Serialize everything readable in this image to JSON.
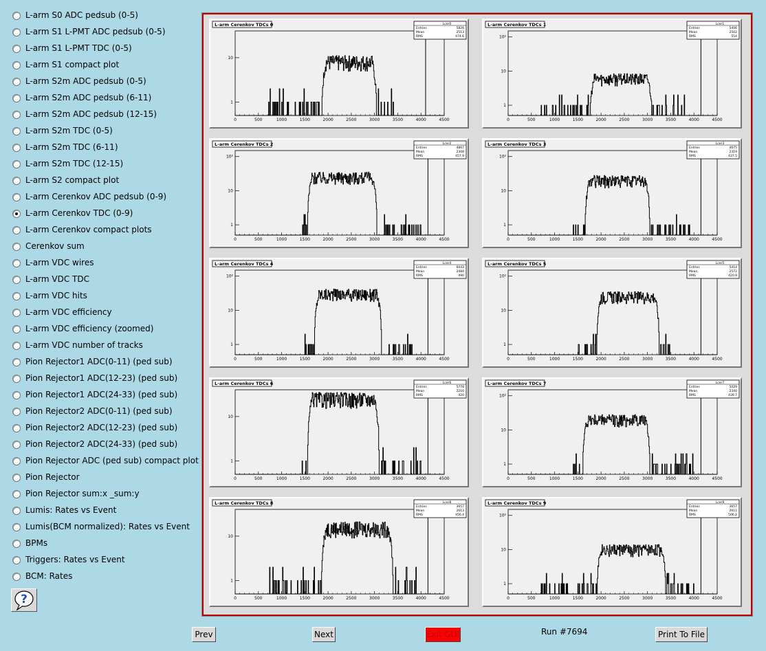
{
  "menu": {
    "items": [
      {
        "label": "L-arm S0 ADC pedsub (0-5)",
        "selected": false
      },
      {
        "label": "L-arm S1 L-PMT ADC pedsub (0-5)",
        "selected": false
      },
      {
        "label": "L-arm S1 L-PMT TDC (0-5)",
        "selected": false
      },
      {
        "label": "L-arm S1 compact plot",
        "selected": false
      },
      {
        "label": "L-arm S2m ADC pedsub (0-5)",
        "selected": false
      },
      {
        "label": "L-arm S2m ADC pedsub (6-11)",
        "selected": false
      },
      {
        "label": "L-arm S2m ADC pedsub (12-15)",
        "selected": false
      },
      {
        "label": "L-arm S2m TDC (0-5)",
        "selected": false
      },
      {
        "label": "L-arm S2m TDC (6-11)",
        "selected": false
      },
      {
        "label": "L-arm S2m TDC (12-15)",
        "selected": false
      },
      {
        "label": "L-arm S2 compact plot",
        "selected": false
      },
      {
        "label": "L-arm Cerenkov ADC pedsub (0-9)",
        "selected": false
      },
      {
        "label": "L-arm Cerenkov TDC (0-9)",
        "selected": true
      },
      {
        "label": "L-arm Cerenkov compact plots",
        "selected": false
      },
      {
        "label": "Cerenkov sum",
        "selected": false
      },
      {
        "label": "L-arm VDC wires",
        "selected": false
      },
      {
        "label": "L-arm VDC TDC",
        "selected": false
      },
      {
        "label": "L-arm VDC hits",
        "selected": false
      },
      {
        "label": "L-arm VDC efficiency",
        "selected": false
      },
      {
        "label": "L-arm VDC efficiency (zoomed)",
        "selected": false
      },
      {
        "label": "L-arm VDC number of tracks",
        "selected": false
      },
      {
        "label": "Pion Rejector1 ADC(0-11) (ped sub)",
        "selected": false
      },
      {
        "label": "Pion Rejector1 ADC(12-23) (ped sub)",
        "selected": false
      },
      {
        "label": "Pion Rejector1 ADC(24-33) (ped sub)",
        "selected": false
      },
      {
        "label": "Pion Rejector2 ADC(0-11) (ped sub)",
        "selected": false
      },
      {
        "label": "Pion Rejector2 ADC(12-23) (ped sub)",
        "selected": false
      },
      {
        "label": "Pion Rejector2 ADC(24-33) (ped sub)",
        "selected": false
      },
      {
        "label": "Pion Rejector ADC (ped sub) compact plot",
        "selected": false
      },
      {
        "label": "Pion Rejector",
        "selected": false
      },
      {
        "label": "Pion Rejector sum:x _sum:y",
        "selected": false
      },
      {
        "label": "Lumis: Rates vs Event",
        "selected": false
      },
      {
        "label": "Lumis(BCM normalized): Rates vs Event",
        "selected": false
      },
      {
        "label": "BPMs",
        "selected": false
      },
      {
        "label": "Triggers: Rates vs Event",
        "selected": false
      },
      {
        "label": "BCM: Rates",
        "selected": false
      }
    ]
  },
  "help": {
    "icon": "question-speech-bubble-icon",
    "symbol": "?"
  },
  "buttons": {
    "prev": "Prev",
    "next": "Next",
    "exit": "Exit GUI",
    "print": "Print To File"
  },
  "run_label": "Run #7694",
  "colors": {
    "background": "#add8e6",
    "frame_border": "#c00000",
    "exit_button": "#ff0000"
  },
  "chart_data": [
    {
      "type": "histogram",
      "title": "L-arm Cerenkov TDCs 0",
      "stats_name": "Lcer0",
      "stats": [
        [
          "Entries",
          "5826"
        ],
        [
          "Mean",
          "2513"
        ],
        [
          "RMS",
          "474.6"
        ]
      ],
      "log_y": true,
      "xlim": [
        0,
        4500
      ],
      "xticks": [
        0,
        500,
        1000,
        1500,
        2000,
        2500,
        3000,
        3500,
        4000,
        4500
      ],
      "yticks": [
        "1",
        "10"
      ],
      "yrange": [
        0.5,
        40
      ],
      "plateau": 8,
      "rise": [
        1850,
        1950
      ],
      "fall": [
        2950,
        3050
      ],
      "noise_range": [
        700,
        3400
      ],
      "spike": 4100
    },
    {
      "type": "histogram",
      "title": "L-arm Cerenkov TDCs 1",
      "stats_name": "Lcer1",
      "stats": [
        [
          "Entries",
          "5406"
        ],
        [
          "Mean",
          "2502"
        ],
        [
          "RMS",
          "554"
        ]
      ],
      "log_y": true,
      "xlim": [
        0,
        4500
      ],
      "xticks": [
        0,
        500,
        1000,
        1500,
        2000,
        2500,
        3000,
        3500,
        4000,
        4500
      ],
      "yticks": [
        "1",
        "10",
        "10²"
      ],
      "yrange": [
        0.5,
        150
      ],
      "plateau": 6,
      "rise": [
        1750,
        1850
      ],
      "fall": [
        3000,
        3100
      ],
      "noise_range": [
        700,
        3800
      ],
      "spike": 4150
    },
    {
      "type": "histogram",
      "title": "L-arm Cerenkov TDCs 2",
      "stats_name": "Lcer2",
      "stats": [
        [
          "Entries",
          "4867"
        ],
        [
          "Mean",
          "2308"
        ],
        [
          "RMS",
          "457.9"
        ]
      ],
      "log_y": true,
      "xlim": [
        0,
        4500
      ],
      "xticks": [
        0,
        500,
        1000,
        1500,
        2000,
        2500,
        3000,
        3500,
        4000,
        4500
      ],
      "yticks": [
        "1",
        "10",
        "10²"
      ],
      "yrange": [
        0.5,
        150
      ],
      "plateau": 25,
      "rise": [
        1550,
        1650
      ],
      "fall": [
        2950,
        3050
      ],
      "noise_range": [
        1400,
        4000
      ],
      "spike": 4150
    },
    {
      "type": "histogram",
      "title": "L-arm Cerenkov TDCs 3",
      "stats_name": "Lcer3",
      "stats": [
        [
          "Entries",
          "4675"
        ],
        [
          "Mean",
          "2319"
        ],
        [
          "RMS",
          "437.5"
        ]
      ],
      "log_y": true,
      "xlim": [
        0,
        4500
      ],
      "xticks": [
        0,
        500,
        1000,
        1500,
        2000,
        2500,
        3000,
        3500,
        4000,
        4500
      ],
      "yticks": [
        "1",
        "10",
        "10²"
      ],
      "yrange": [
        0.5,
        150
      ],
      "plateau": 20,
      "rise": [
        1650,
        1750
      ],
      "fall": [
        2950,
        3050
      ],
      "noise_range": [
        1400,
        3900
      ],
      "spike": 4150
    },
    {
      "type": "histogram",
      "title": "L-arm Cerenkov TDCs 4",
      "stats_name": "Lcer4",
      "stats": [
        [
          "Entries",
          "6043"
        ],
        [
          "Mean",
          "2484"
        ],
        [
          "RMS",
          "490"
        ]
      ],
      "log_y": true,
      "xlim": [
        0,
        4500
      ],
      "xticks": [
        0,
        500,
        1000,
        1500,
        2000,
        2500,
        3000,
        3500,
        4000,
        4500
      ],
      "yticks": [
        "1",
        "10",
        "10²"
      ],
      "yrange": [
        0.5,
        150
      ],
      "plateau": 30,
      "rise": [
        1700,
        1800
      ],
      "fall": [
        3050,
        3150
      ],
      "noise_range": [
        1400,
        3800
      ],
      "spike": 4150
    },
    {
      "type": "histogram",
      "title": "L-arm Cerenkov TDCs 5",
      "stats_name": "Lcer5",
      "stats": [
        [
          "Entries",
          "5414"
        ],
        [
          "Mean",
          "2572"
        ],
        [
          "RMS",
          "420.9"
        ]
      ],
      "log_y": true,
      "xlim": [
        0,
        4500
      ],
      "xticks": [
        0,
        500,
        1000,
        1500,
        2000,
        2500,
        3000,
        3500,
        4000,
        4500
      ],
      "yticks": [
        "1",
        "10",
        "10²"
      ],
      "yrange": [
        0.5,
        150
      ],
      "plateau": 25,
      "rise": [
        1900,
        2000
      ],
      "fall": [
        3150,
        3250
      ],
      "noise_range": [
        1500,
        3500
      ],
      "spike": 4150
    },
    {
      "type": "histogram",
      "title": "L-arm Cerenkov TDCs 6",
      "stats_name": "Lcer6",
      "stats": [
        [
          "Entries",
          "5778"
        ],
        [
          "Mean",
          "2216"
        ],
        [
          "RMS",
          "420"
        ]
      ],
      "log_y": true,
      "xlim": [
        0,
        4500
      ],
      "xticks": [
        0,
        500,
        1000,
        1500,
        2000,
        2500,
        3000,
        3500,
        4000,
        4500
      ],
      "yticks": [
        "1",
        "10"
      ],
      "yrange": [
        0.5,
        40
      ],
      "plateau": 25,
      "rise": [
        1550,
        1650
      ],
      "fall": [
        3000,
        3100
      ],
      "noise_range": [
        1400,
        4000
      ],
      "spike": 4150
    },
    {
      "type": "histogram",
      "title": "L-arm Cerenkov TDCs 7",
      "stats_name": "Lcer7",
      "stats": [
        [
          "Entries",
          "5029"
        ],
        [
          "Mean",
          "2340"
        ],
        [
          "RMS",
          "439.7"
        ]
      ],
      "log_y": true,
      "xlim": [
        0,
        4500
      ],
      "xticks": [
        0,
        500,
        1000,
        1500,
        2000,
        2500,
        3000,
        3500,
        4000,
        4500
      ],
      "yticks": [
        "1",
        "10",
        "10²"
      ],
      "yrange": [
        0.5,
        150
      ],
      "plateau": 20,
      "rise": [
        1600,
        1700
      ],
      "fall": [
        2950,
        3050
      ],
      "noise_range": [
        1400,
        4000
      ],
      "spike": 4150
    },
    {
      "type": "histogram",
      "title": "L-arm Cerenkov TDCs 8",
      "stats_name": "Lcer8",
      "stats": [
        [
          "Entries",
          "3657"
        ],
        [
          "Mean",
          "2613"
        ],
        [
          "RMS",
          "456.4"
        ]
      ],
      "log_y": true,
      "xlim": [
        0,
        4500
      ],
      "xticks": [
        0,
        500,
        1000,
        1500,
        2000,
        2500,
        3000,
        3500,
        4000,
        4500
      ],
      "yticks": [
        "1",
        "10"
      ],
      "yrange": [
        0.5,
        40
      ],
      "plateau": 15,
      "rise": [
        1850,
        1950
      ],
      "fall": [
        3300,
        3400
      ],
      "noise_range": [
        700,
        3900
      ],
      "spike": 4150
    },
    {
      "type": "histogram",
      "title": "L-arm Cerenkov TDCs 9",
      "stats_name": "Lcer9",
      "stats": [
        [
          "Entries",
          "3657"
        ],
        [
          "Mean",
          "2611"
        ],
        [
          "RMS",
          "506.2"
        ]
      ],
      "log_y": true,
      "xlim": [
        0,
        4500
      ],
      "xticks": [
        0,
        500,
        1000,
        1500,
        2000,
        2500,
        3000,
        3500,
        4000,
        4500
      ],
      "yticks": [
        "1",
        "10",
        "10²"
      ],
      "yrange": [
        0.5,
        150
      ],
      "plateau": 10,
      "rise": [
        1900,
        2000
      ],
      "fall": [
        3300,
        3400
      ],
      "noise_range": [
        700,
        4000
      ],
      "spike": 4150
    }
  ]
}
